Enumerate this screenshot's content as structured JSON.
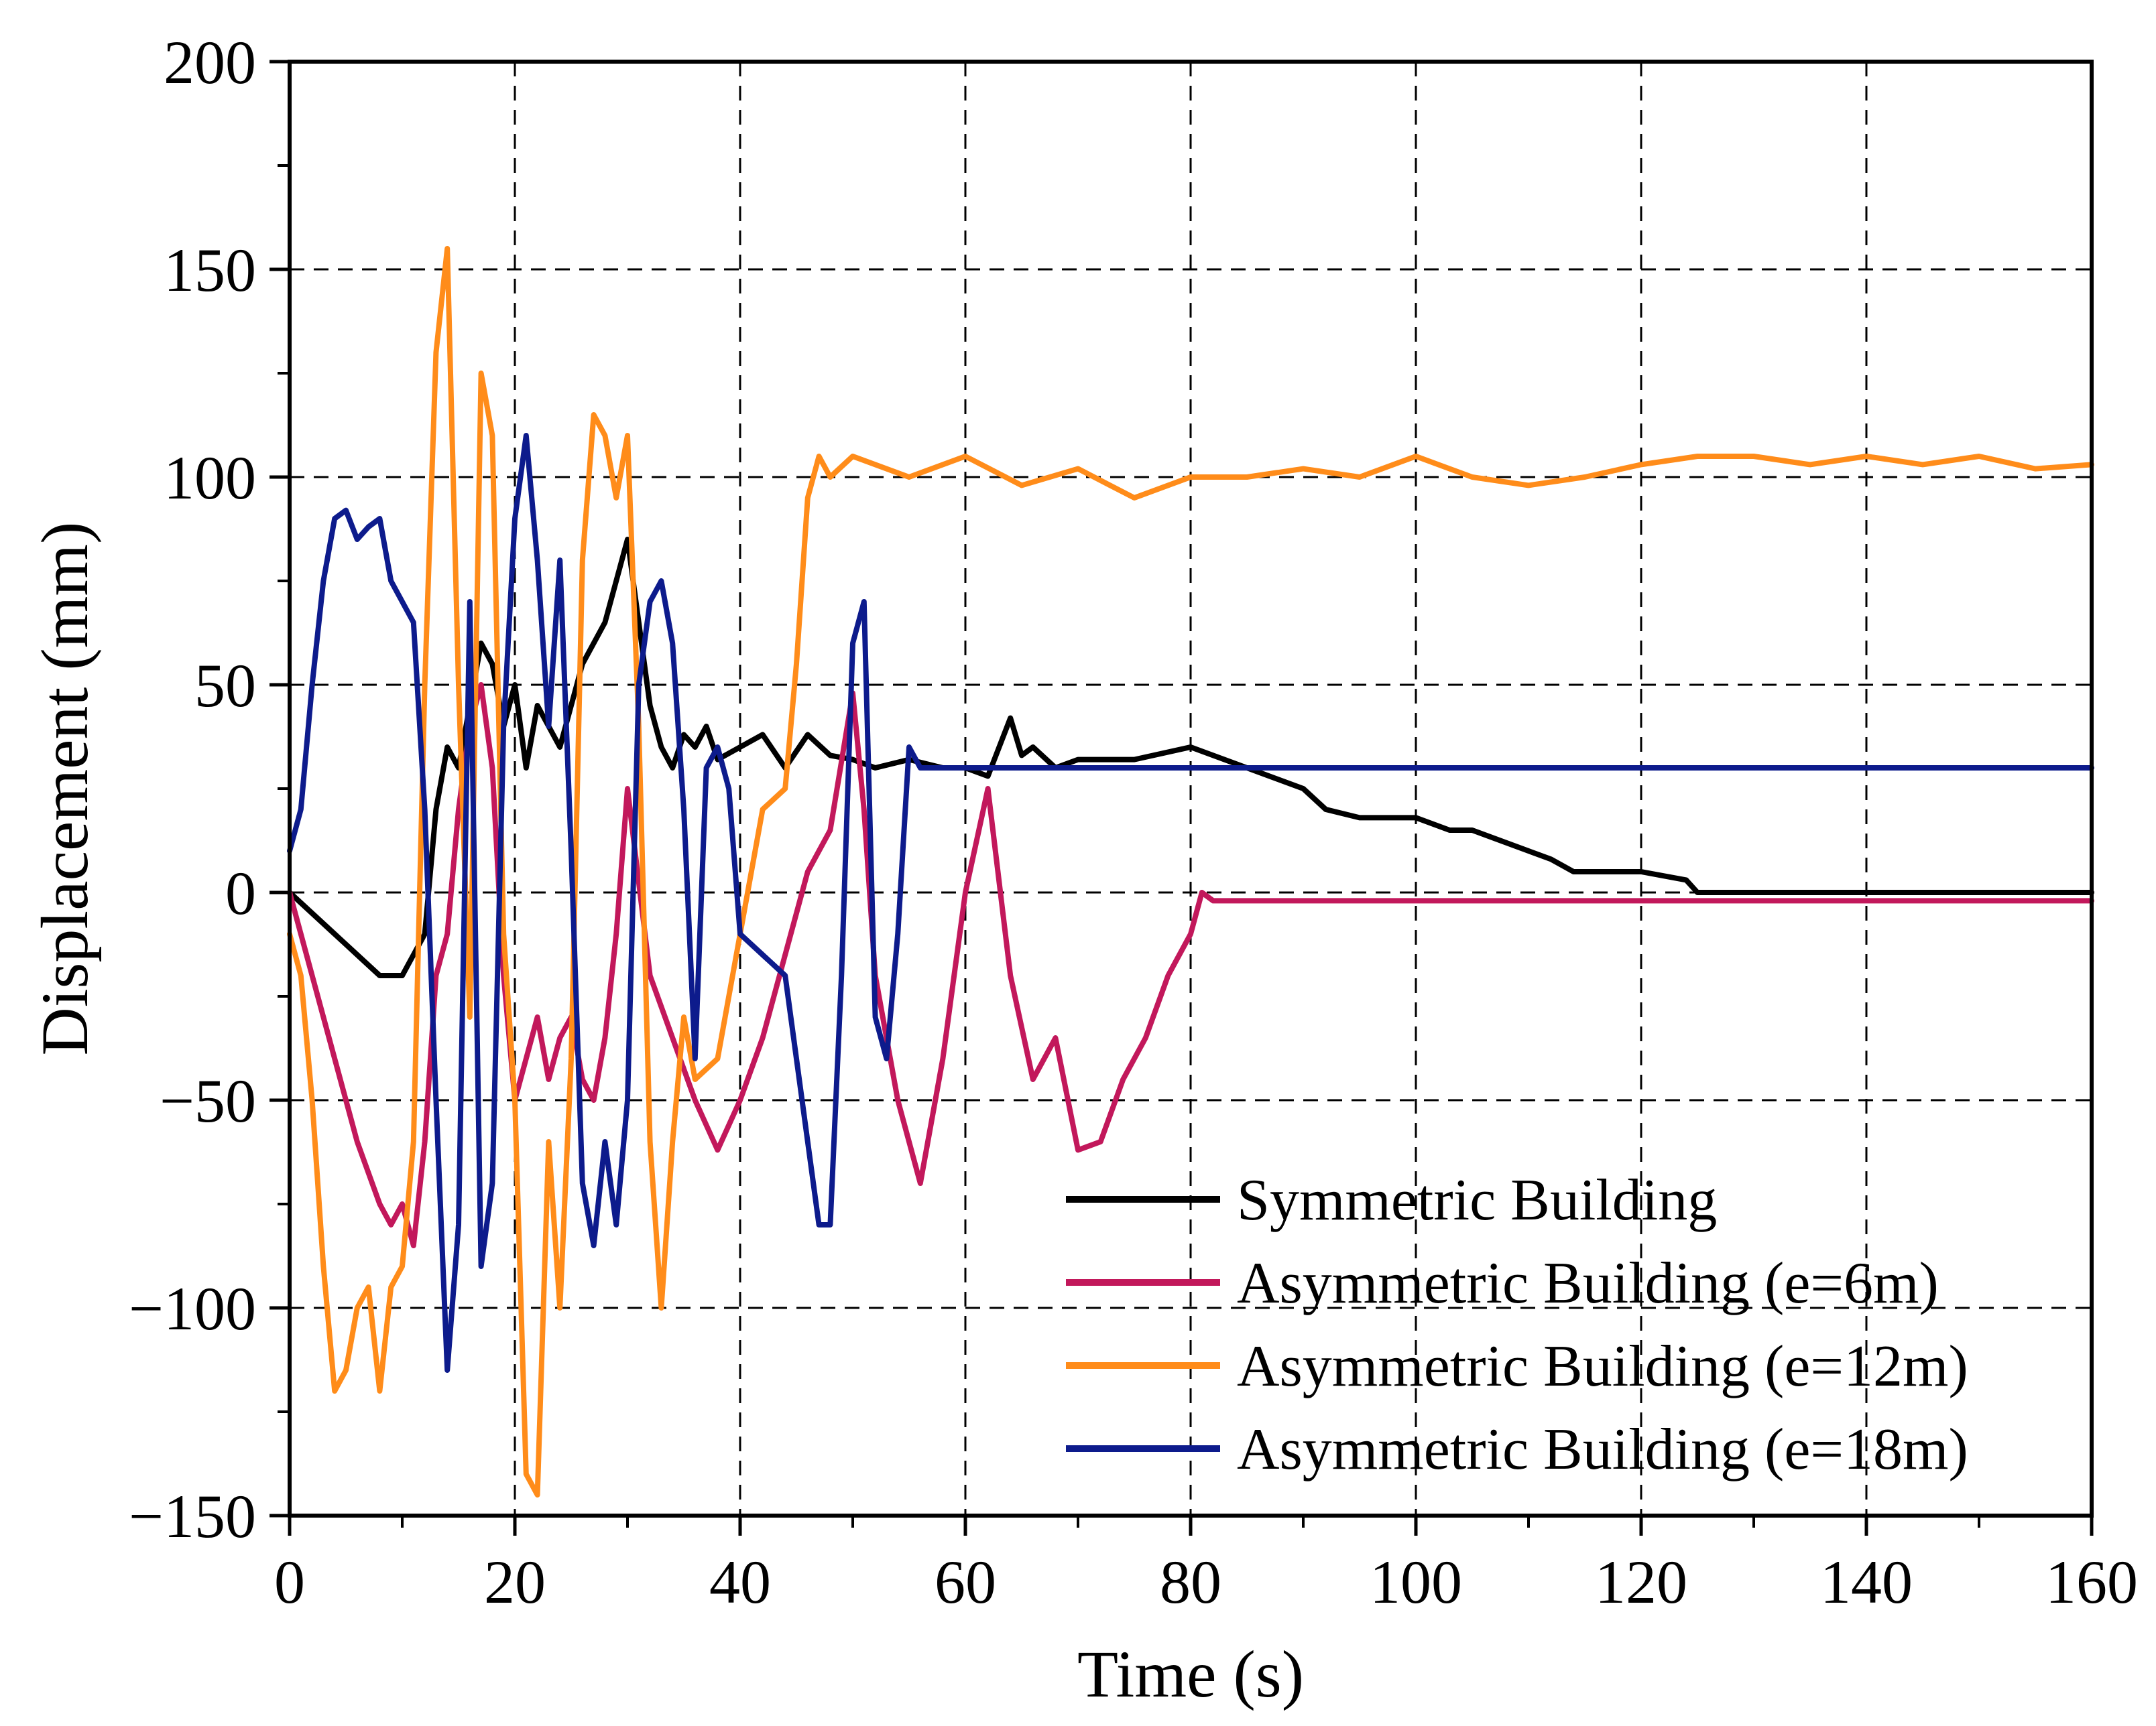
{
  "chart_data": {
    "type": "line",
    "title": "",
    "xlabel": "Time (s)",
    "ylabel": "Displacement (mm)",
    "xlim": [
      0,
      160
    ],
    "ylim": [
      -150,
      200
    ],
    "xticks": [
      0,
      20,
      40,
      60,
      80,
      100,
      120,
      140,
      160
    ],
    "xtick_labels": [
      "0",
      "20",
      "40",
      "60",
      "80",
      "100",
      "120",
      "140",
      "160"
    ],
    "yticks": [
      -150,
      -100,
      -50,
      0,
      50,
      100,
      150,
      200
    ],
    "ytick_labels": [
      "−150",
      "−100",
      "−50",
      "0",
      "50",
      "100",
      "150",
      "200"
    ],
    "grid": true,
    "legend_position": "bottom-right",
    "series": [
      {
        "name": "Symmetric Building",
        "color": "#000000",
        "x": [
          0,
          2,
          4,
          6,
          8,
          10,
          11,
          12,
          13,
          14,
          15,
          16,
          17,
          18,
          19,
          20,
          21,
          22,
          23,
          24,
          25,
          26,
          27,
          28,
          29,
          30,
          31,
          32,
          33,
          34,
          35,
          36,
          37,
          38,
          40,
          42,
          44,
          46,
          48,
          50,
          52,
          55,
          58,
          60,
          62,
          64,
          65,
          66,
          68,
          70,
          75,
          80,
          85,
          90,
          92,
          95,
          100,
          103,
          105,
          110,
          112,
          114,
          120,
          124,
          125,
          126,
          130,
          140,
          150,
          160
        ],
        "y": [
          0,
          -5,
          -10,
          -15,
          -20,
          -20,
          -15,
          -10,
          20,
          35,
          30,
          45,
          60,
          55,
          40,
          50,
          30,
          45,
          40,
          35,
          45,
          55,
          60,
          65,
          75,
          85,
          65,
          45,
          35,
          30,
          38,
          35,
          40,
          32,
          35,
          38,
          30,
          38,
          33,
          32,
          30,
          32,
          30,
          30,
          28,
          42,
          33,
          35,
          30,
          32,
          32,
          35,
          30,
          25,
          20,
          18,
          18,
          15,
          15,
          10,
          8,
          5,
          5,
          3,
          0,
          0,
          0,
          0,
          0,
          0
        ]
      },
      {
        "name": "Asymmetric Building (e=6m)",
        "color": "#C2185B",
        "x": [
          0,
          2,
          4,
          6,
          8,
          9,
          10,
          11,
          12,
          13,
          14,
          15,
          16,
          17,
          18,
          19,
          20,
          21,
          22,
          23,
          24,
          25,
          26,
          27,
          28,
          29,
          30,
          32,
          34,
          36,
          38,
          40,
          42,
          44,
          46,
          48,
          50,
          51,
          52,
          54,
          56,
          58,
          60,
          62,
          64,
          66,
          68,
          70,
          72,
          74,
          76,
          78,
          80,
          81,
          82,
          90,
          100,
          120,
          140,
          160
        ],
        "y": [
          0,
          -20,
          -40,
          -60,
          -75,
          -80,
          -75,
          -85,
          -60,
          -20,
          -10,
          20,
          40,
          50,
          30,
          -20,
          -50,
          -40,
          -30,
          -45,
          -35,
          -30,
          -45,
          -50,
          -35,
          -10,
          25,
          -20,
          -35,
          -50,
          -62,
          -50,
          -35,
          -15,
          5,
          15,
          48,
          20,
          -20,
          -50,
          -70,
          -40,
          0,
          25,
          -20,
          -45,
          -35,
          -62,
          -60,
          -45,
          -35,
          -20,
          -10,
          0,
          -2,
          -2,
          -2,
          -2,
          -2,
          -2
        ]
      },
      {
        "name": "Asymmetric Building (e=12m)",
        "color": "#FF8C1A",
        "x": [
          0,
          1,
          2,
          3,
          4,
          5,
          6,
          7,
          8,
          9,
          10,
          11,
          12,
          13,
          14,
          15,
          16,
          17,
          18,
          19,
          20,
          21,
          22,
          23,
          24,
          25,
          26,
          27,
          28,
          29,
          30,
          31,
          32,
          33,
          34,
          35,
          36,
          38,
          40,
          42,
          44,
          45,
          46,
          47,
          48,
          50,
          55,
          60,
          65,
          70,
          75,
          80,
          85,
          90,
          95,
          100,
          105,
          110,
          115,
          120,
          125,
          130,
          135,
          140,
          145,
          150,
          155,
          160
        ],
        "y": [
          -10,
          -20,
          -50,
          -90,
          -120,
          -115,
          -100,
          -95,
          -120,
          -95,
          -90,
          -60,
          50,
          130,
          155,
          50,
          -30,
          125,
          110,
          -10,
          -50,
          -140,
          -145,
          -60,
          -100,
          -40,
          80,
          115,
          110,
          95,
          110,
          40,
          -60,
          -100,
          -60,
          -30,
          -45,
          -40,
          -10,
          20,
          25,
          55,
          95,
          105,
          100,
          105,
          100,
          105,
          98,
          102,
          95,
          100,
          100,
          102,
          100,
          105,
          100,
          98,
          100,
          103,
          105,
          105,
          103,
          105,
          103,
          105,
          102,
          103
        ]
      },
      {
        "name": "Asymmetric Building (e=18m)",
        "color": "#0D1B8C",
        "x": [
          0,
          1,
          2,
          3,
          4,
          5,
          6,
          7,
          8,
          9,
          10,
          11,
          12,
          13,
          14,
          15,
          16,
          17,
          18,
          19,
          20,
          21,
          22,
          23,
          24,
          25,
          26,
          27,
          28,
          29,
          30,
          31,
          32,
          33,
          34,
          35,
          36,
          37,
          38,
          39,
          40,
          42,
          44,
          46,
          47,
          48,
          49,
          50,
          51,
          52,
          53,
          54,
          55,
          56,
          58,
          60,
          65,
          70,
          75,
          80,
          85,
          90,
          100,
          110,
          120,
          130,
          140,
          150,
          160
        ],
        "y": [
          10,
          20,
          50,
          75,
          90,
          92,
          85,
          88,
          90,
          75,
          70,
          65,
          20,
          -50,
          -115,
          -80,
          70,
          -90,
          -70,
          40,
          90,
          110,
          80,
          40,
          80,
          10,
          -70,
          -85,
          -60,
          -80,
          -50,
          50,
          70,
          75,
          60,
          20,
          -40,
          30,
          35,
          25,
          -10,
          -15,
          -20,
          -60,
          -80,
          -80,
          -20,
          60,
          70,
          -30,
          -40,
          -10,
          35,
          30,
          30,
          30,
          30,
          30,
          30,
          30,
          30,
          30,
          30,
          30,
          30,
          30,
          30,
          30,
          30
        ]
      }
    ]
  }
}
